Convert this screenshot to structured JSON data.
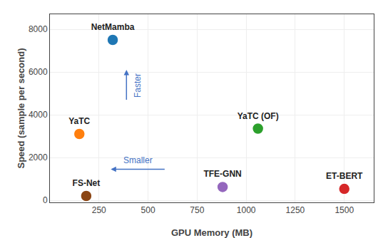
{
  "chart_data": {
    "type": "scatter",
    "x_label": "GPU Memory (MB)",
    "y_label": "Speed (sample per second)",
    "labels": [
      "NetMamba",
      "YaTC",
      "FS-Net",
      "YaTC (OF)",
      "TFE-GNN",
      "ET-BERT"
    ],
    "x": [
      320,
      150,
      185,
      1060,
      880,
      1500
    ],
    "values": [
      7500,
      3100,
      200,
      3350,
      620,
      530
    ],
    "colors": [
      "#1f77b4",
      "#ff7f0e",
      "#8B4513",
      "#2ca02c",
      "#9467bd",
      "#d62728"
    ],
    "xlim": [
      0,
      1650
    ],
    "xticks": [
      250,
      500,
      750,
      1000,
      1250,
      1500
    ],
    "ylim": [
      -100,
      8700
    ],
    "yticks": [
      0,
      2000,
      4000,
      6000,
      8000
    ],
    "grid": true,
    "annotations": [
      {
        "text": "Faster",
        "arrow_from": [
          390,
          4650
        ],
        "arrow_to": [
          390,
          6100
        ],
        "color": "#4472c4"
      },
      {
        "text": "Smaller",
        "arrow_from": [
          590,
          1450
        ],
        "arrow_to": [
          310,
          1450
        ],
        "color": "#4472c4"
      }
    ]
  }
}
